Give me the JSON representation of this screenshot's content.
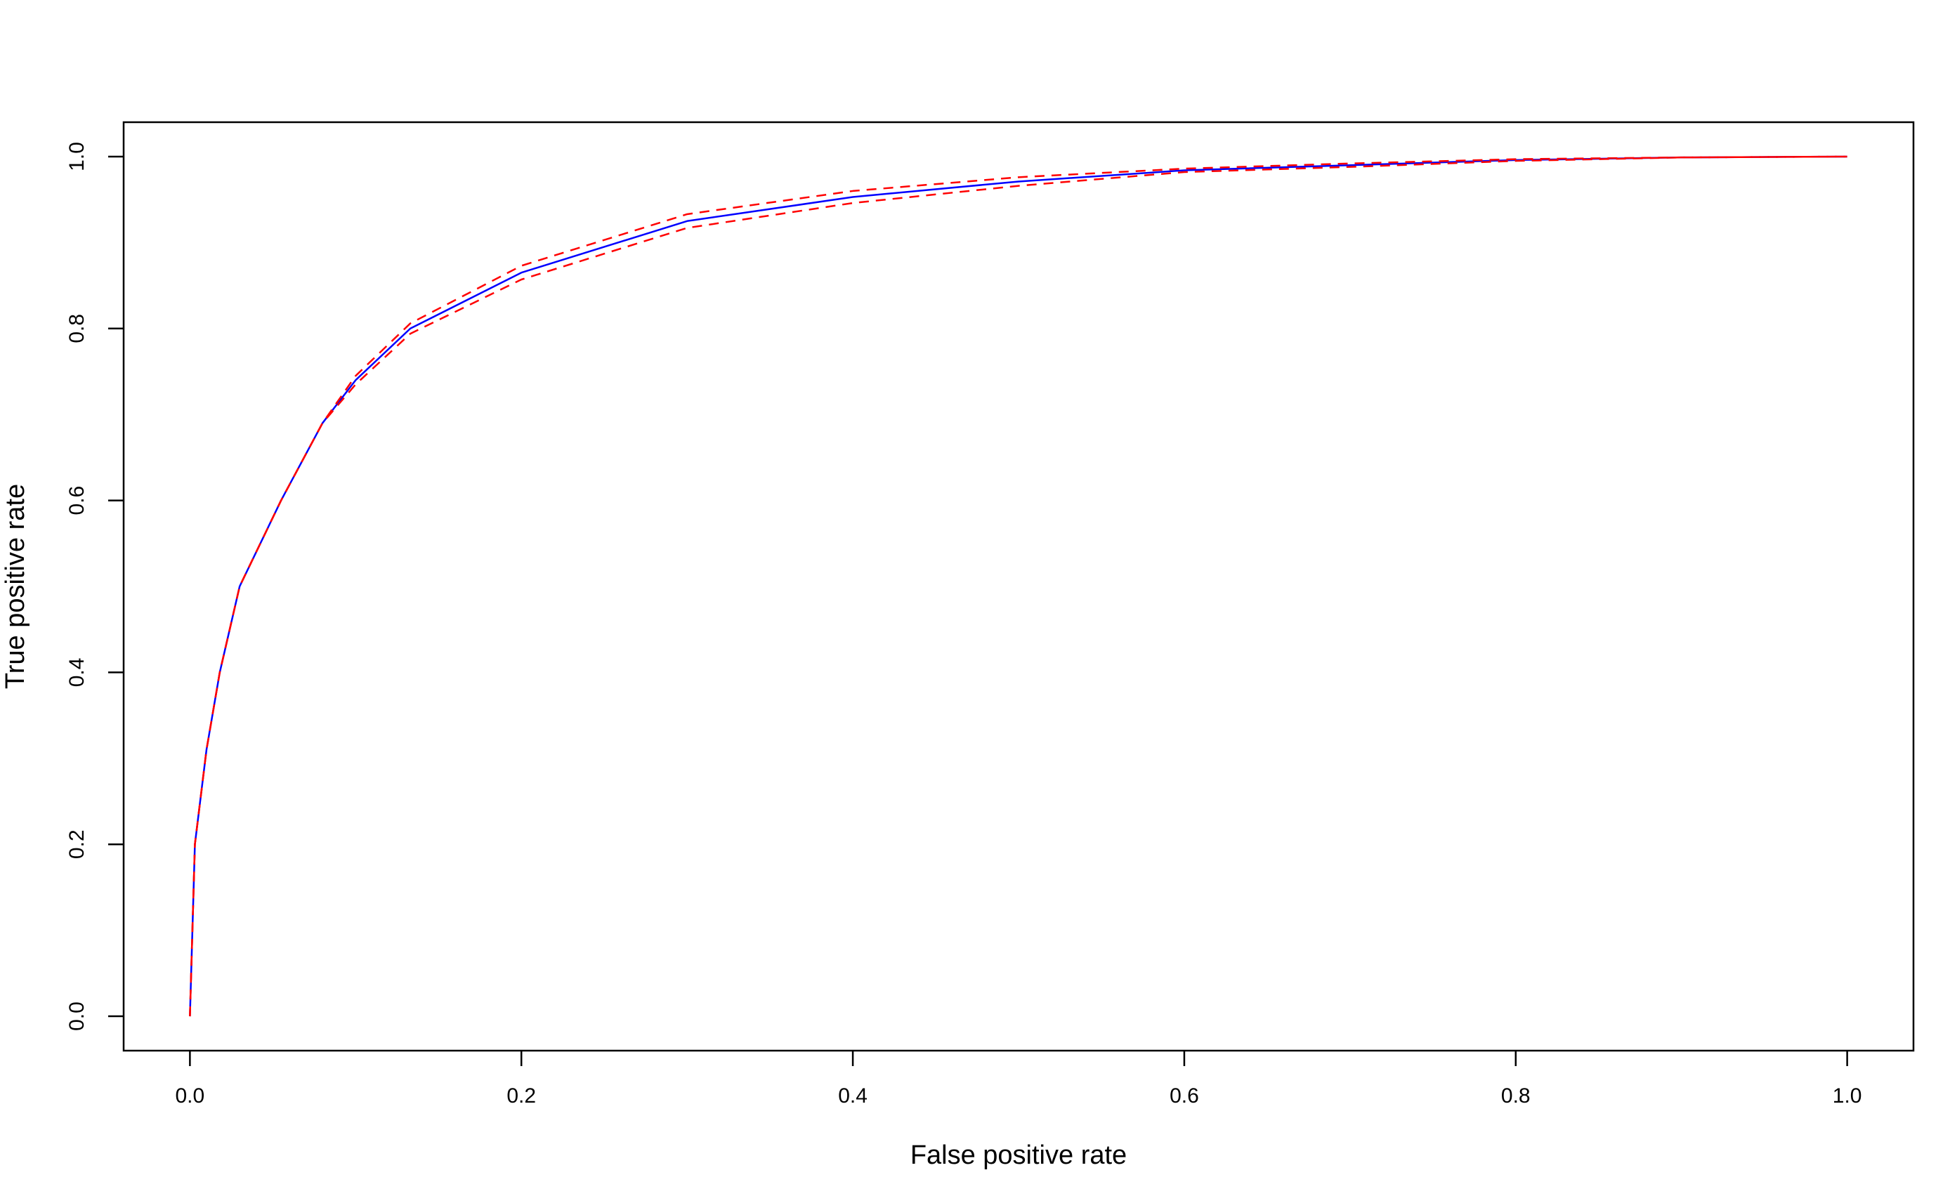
{
  "chart_data": {
    "type": "line",
    "xlabel": "False positive rate",
    "ylabel": "True positive rate",
    "x": [
      0,
      0.003,
      0.01,
      0.018,
      0.03,
      0.055,
      0.08,
      0.1,
      0.133,
      0.2,
      0.3,
      0.4,
      0.5,
      0.6,
      0.7,
      0.8,
      0.9,
      1.0
    ],
    "series": [
      {
        "color": "#0000ff",
        "dashed": false,
        "values": [
          0,
          0.2,
          0.31,
          0.4,
          0.5,
          0.6,
          0.69,
          0.74,
          0.8,
          0.865,
          0.925,
          0.953,
          0.971,
          0.984,
          0.99,
          0.996,
          0.999,
          1.0
        ]
      },
      {
        "color": "#ff0000",
        "dashed": true,
        "values": [
          0,
          0.2,
          0.31,
          0.4,
          0.5,
          0.6,
          0.69,
          0.745,
          0.806,
          0.873,
          0.933,
          0.96,
          0.976,
          0.986,
          0.992,
          0.997,
          0.999,
          1.0
        ]
      },
      {
        "color": "#ff0000",
        "dashed": true,
        "values": [
          0,
          0.2,
          0.31,
          0.4,
          0.5,
          0.6,
          0.69,
          0.735,
          0.794,
          0.857,
          0.917,
          0.946,
          0.966,
          0.982,
          0.988,
          0.995,
          0.999,
          1.0
        ]
      }
    ],
    "xlim": [
      -0.04,
      1.04
    ],
    "ylim": [
      -0.04,
      1.04
    ],
    "xticks": [
      {
        "value": 0,
        "label": "0.0"
      },
      0.2,
      0.4,
      0.6,
      0.8,
      {
        "value": 1,
        "label": "1.0"
      }
    ],
    "yticks": [
      {
        "value": 0,
        "label": "0.0"
      },
      0.2,
      0.4,
      0.6,
      0.8,
      {
        "value": 1,
        "label": "1.0"
      }
    ],
    "grid": false
  }
}
